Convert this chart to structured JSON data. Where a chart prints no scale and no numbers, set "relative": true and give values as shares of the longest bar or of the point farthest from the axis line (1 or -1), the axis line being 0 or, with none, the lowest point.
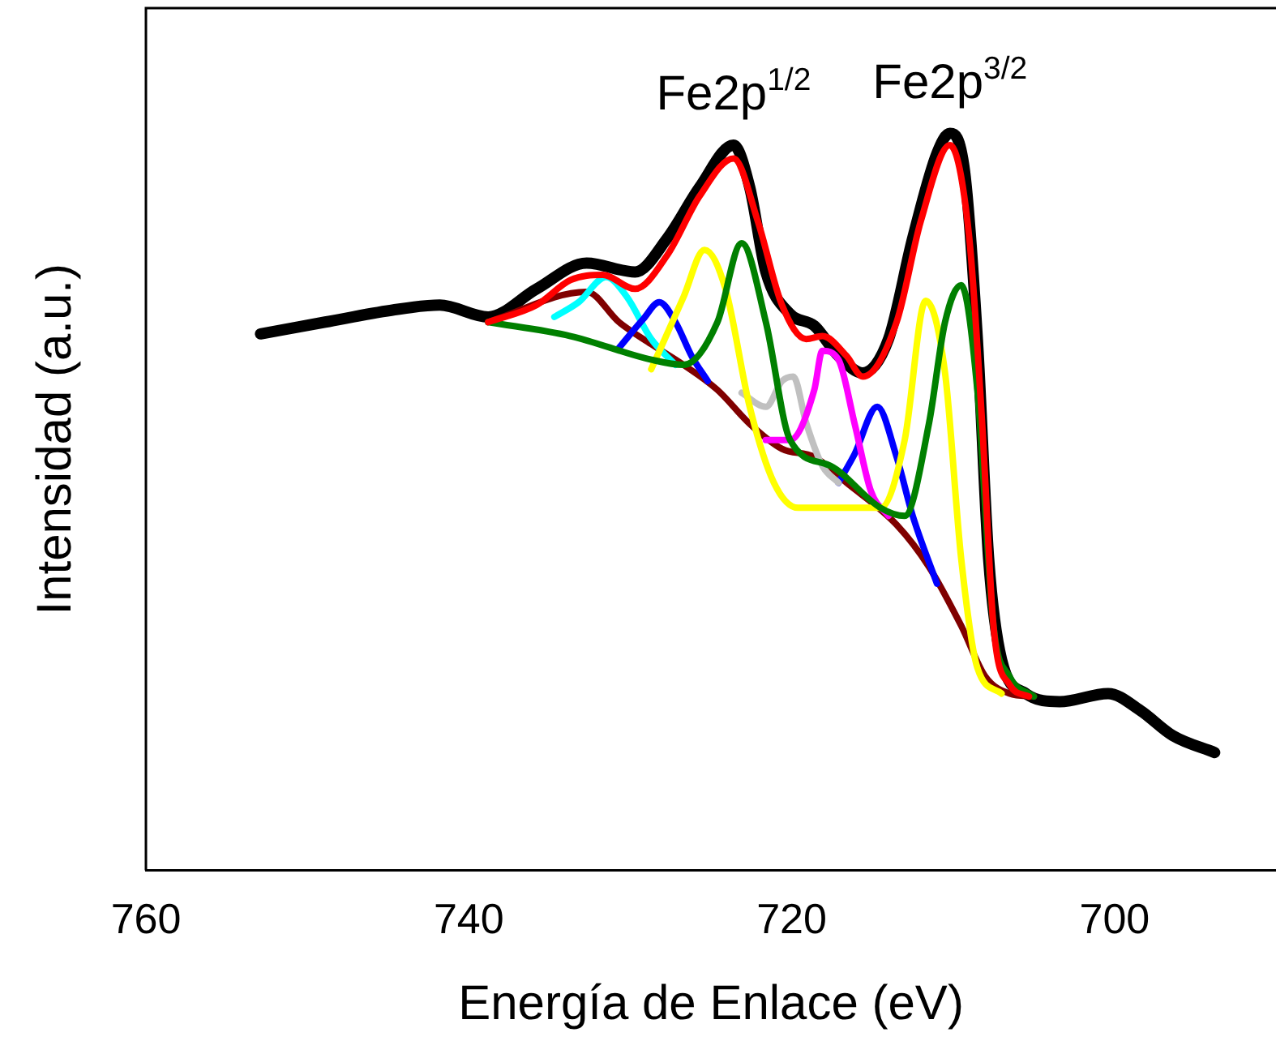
{
  "chart_data": {
    "type": "line",
    "relative": true,
    "xlabel": "Energía de Enlace (eV)",
    "ylabel": "Intensidad (a.u.)",
    "xlim": [
      760,
      690
    ],
    "xticks": [
      760,
      740,
      720,
      700
    ],
    "grid": false,
    "legend": false,
    "marker": "none",
    "line_style": "solid",
    "annotations": [
      {
        "text": "Fe2p$^{1/2}$",
        "x": 723.6,
        "y": 0.984
      },
      {
        "text": "Fe2p$^{3/2}$",
        "x": 710.2,
        "y": 1.0
      }
    ],
    "series": [
      {
        "color": "#000000",
        "x": [
          752.9,
          748.9,
          744.8,
          741.8,
          738.8,
          735.8,
          732.7,
          729.7,
          727.7,
          725.7,
          723.6,
          722.6,
          721.6,
          720.1,
          718.6,
          717.1,
          715.6,
          714.0,
          712.5,
          711.0,
          710.2,
          709.3,
          708.5,
          707.8,
          707.0,
          705.5,
          703.4,
          700.4,
          698.4,
          696.4,
          693.8
        ],
        "values": [
          0.728,
          0.744,
          0.76,
          0.767,
          0.751,
          0.789,
          0.824,
          0.812,
          0.858,
          0.927,
          0.984,
          0.927,
          0.812,
          0.755,
          0.739,
          0.698,
          0.675,
          0.721,
          0.858,
          0.973,
          1.0,
          0.95,
          0.721,
          0.423,
          0.286,
          0.24,
          0.229,
          0.24,
          0.217,
          0.183,
          0.16
        ]
      },
      {
        "color": "#800000",
        "x": [
          738.8,
          732.7,
          730.7,
          728.7,
          726.7,
          724.6,
          722.6,
          720.6,
          718.6,
          716.6,
          713.5,
          711.5,
          709.5,
          708.0,
          706.5,
          705.0
        ],
        "values": [
          0.744,
          0.785,
          0.744,
          0.714,
          0.686,
          0.652,
          0.606,
          0.572,
          0.561,
          0.526,
          0.469,
          0.412,
          0.332,
          0.263,
          0.24,
          0.236
        ]
      },
      {
        "color": "#00ffff",
        "x": [
          734.7,
          733.2,
          731.5,
          730.2,
          728.7,
          727.2
        ],
        "values": [
          0.751,
          0.771,
          0.805,
          0.778,
          0.721,
          0.686
        ]
      },
      {
        "color": "#0000ff",
        "x": [
          730.7,
          729.2,
          728.2,
          727.2,
          726.2,
          725.2
        ],
        "values": [
          0.709,
          0.748,
          0.771,
          0.744,
          0.698,
          0.664
        ]
      },
      {
        "color": "#0000ff",
        "x": [
          717.1,
          716.1,
          714.7,
          713.5,
          712.5,
          711.0
        ],
        "values": [
          0.526,
          0.565,
          0.629,
          0.561,
          0.481,
          0.389
        ]
      },
      {
        "color": "#c0c0c0",
        "x": [
          723.1,
          721.6,
          720.6,
          719.9,
          719.1,
          718.1,
          717.1
        ],
        "values": [
          0.648,
          0.629,
          0.664,
          0.67,
          0.607,
          0.549,
          0.526
        ]
      },
      {
        "color": "#ff00ff",
        "x": [
          721.6,
          720.1,
          718.6,
          718.1,
          717.1,
          716.1,
          715.1,
          714.0
        ],
        "values": [
          0.584,
          0.584,
          0.652,
          0.705,
          0.693,
          0.606,
          0.515,
          0.481
        ]
      },
      {
        "color": "#ffff00",
        "x": [
          728.7,
          726.7,
          725.4,
          724.1,
          722.6,
          721.1,
          719.6,
          714.5,
          713.0,
          711.7,
          710.5,
          709.5,
          708.5,
          707.0
        ],
        "values": [
          0.68,
          0.778,
          0.842,
          0.789,
          0.629,
          0.526,
          0.492,
          0.492,
          0.584,
          0.773,
          0.675,
          0.423,
          0.275,
          0.24
        ]
      },
      {
        "color": "#008000",
        "x": [
          738.8,
          733.7,
          728.7,
          726.7,
          724.6,
          723.1,
          721.6,
          720.1,
          717.6,
          714.5,
          713.0,
          711.5,
          710.5,
          709.5,
          708.5,
          707.5,
          706.5,
          705.0
        ],
        "values": [
          0.744,
          0.725,
          0.693,
          0.686,
          0.744,
          0.851,
          0.744,
          0.584,
          0.549,
          0.492,
          0.481,
          0.606,
          0.744,
          0.794,
          0.652,
          0.332,
          0.263,
          0.236
        ]
      },
      {
        "color": "#ff0000",
        "x": [
          738.8,
          735.8,
          733.7,
          731.7,
          729.7,
          727.7,
          725.7,
          723.6,
          722.1,
          720.6,
          719.1,
          718.1,
          716.6,
          715.6,
          713.5,
          712.0,
          710.2,
          709.0,
          708.2,
          707.5,
          706.5,
          705.3
        ],
        "values": [
          0.744,
          0.767,
          0.801,
          0.808,
          0.789,
          0.835,
          0.915,
          0.966,
          0.881,
          0.767,
          0.721,
          0.725,
          0.698,
          0.67,
          0.744,
          0.881,
          0.984,
          0.858,
          0.606,
          0.332,
          0.252,
          0.236
        ]
      }
    ]
  }
}
